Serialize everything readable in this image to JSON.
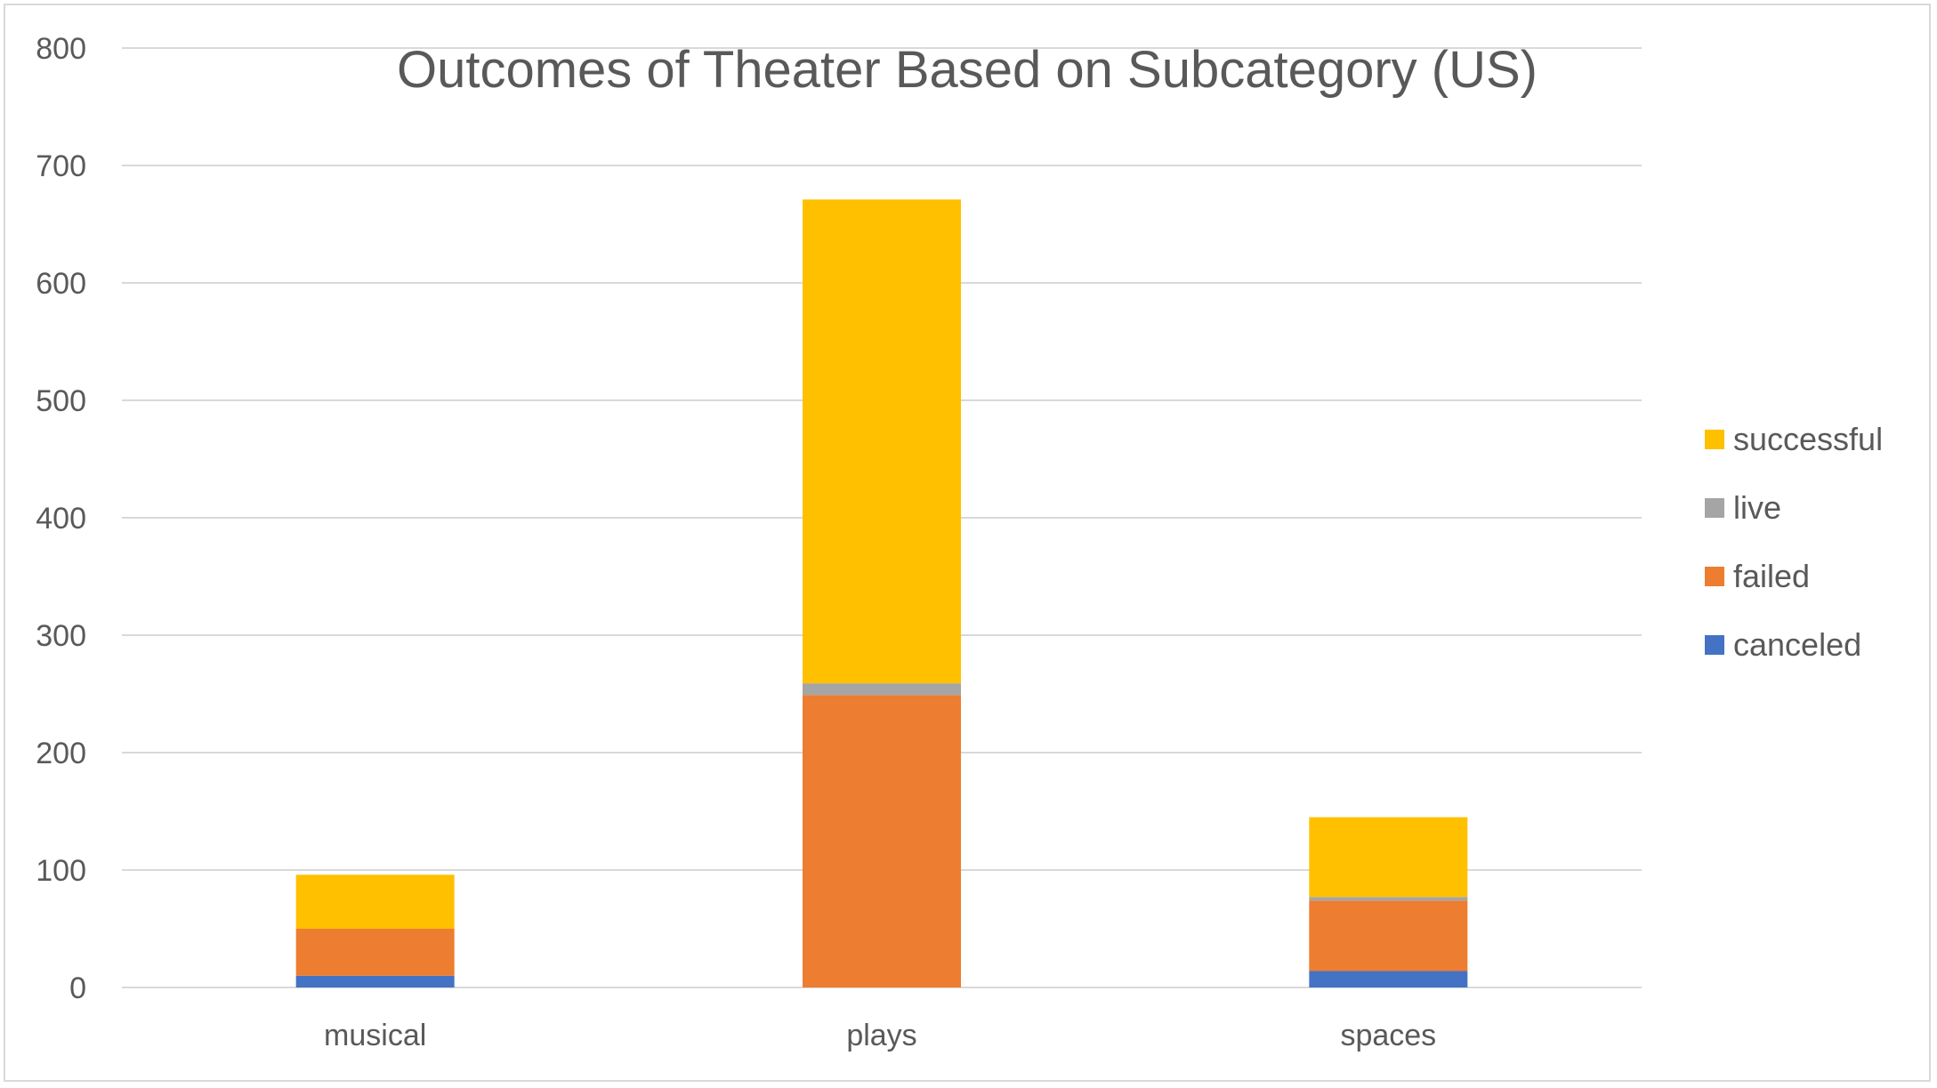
{
  "chart_data": {
    "type": "bar",
    "stacked": true,
    "title": "Outcomes of Theater Based on Subcategory (US)",
    "xlabel": "",
    "ylabel": "",
    "categories": [
      "musical",
      "plays",
      "spaces"
    ],
    "series": [
      {
        "name": "canceled",
        "values": [
          10,
          0,
          14
        ],
        "color": "#4472C4"
      },
      {
        "name": "failed",
        "values": [
          40,
          249,
          60
        ],
        "color": "#ED7D31"
      },
      {
        "name": "live",
        "values": [
          0,
          10,
          3
        ],
        "color": "#A5A5A5"
      },
      {
        "name": "successful",
        "values": [
          46,
          412,
          68
        ],
        "color": "#FFC000"
      }
    ],
    "ylim": [
      0,
      800
    ],
    "yticks": [
      "0",
      "100",
      "200",
      "300",
      "400",
      "500",
      "600",
      "700",
      "800"
    ],
    "grid": true,
    "legend_position": "right",
    "legend_order": [
      "successful",
      "live",
      "failed",
      "canceled"
    ]
  }
}
